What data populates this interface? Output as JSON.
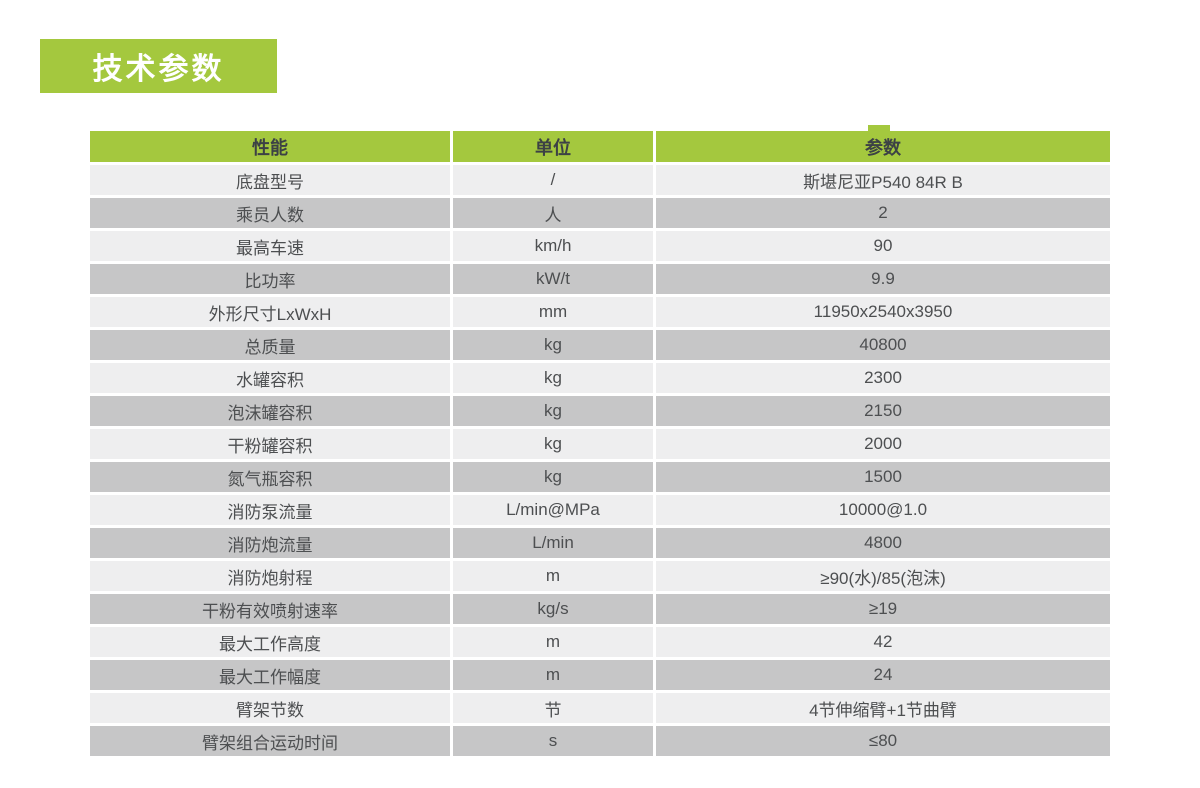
{
  "page": {
    "title": "技术参数",
    "colors": {
      "accent_green": "#a4c83e",
      "row_light": "#eeeeef",
      "row_dark": "#c6c6c7",
      "header_text": "#3c4145",
      "cell_text": "#4d4f51",
      "title_text": "#ffffff"
    }
  },
  "table": {
    "columns": [
      {
        "key": "name",
        "label": "性能"
      },
      {
        "key": "unit",
        "label": "单位"
      },
      {
        "key": "value",
        "label": "参数"
      }
    ],
    "rows": [
      {
        "name": "底盘型号",
        "unit": "/",
        "value": "斯堪尼亚P540 84R B"
      },
      {
        "name": "乘员人数",
        "unit": "人",
        "value": "2"
      },
      {
        "name": "最高车速",
        "unit": "km/h",
        "value": "90"
      },
      {
        "name": "比功率",
        "unit": "kW/t",
        "value": "9.9"
      },
      {
        "name": "外形尺寸LxWxH",
        "unit": "mm",
        "value": "11950x2540x3950"
      },
      {
        "name": "总质量",
        "unit": "kg",
        "value": "40800"
      },
      {
        "name": "水罐容积",
        "unit": "kg",
        "value": "2300"
      },
      {
        "name": "泡沫罐容积",
        "unit": "kg",
        "value": "2150"
      },
      {
        "name": "干粉罐容积",
        "unit": "kg",
        "value": "2000"
      },
      {
        "name": "氮气瓶容积",
        "unit": "kg",
        "value": "1500"
      },
      {
        "name": "消防泵流量",
        "unit": "L/min@MPa",
        "value": "10000@1.0"
      },
      {
        "name": "消防炮流量",
        "unit": "L/min",
        "value": "4800"
      },
      {
        "name": "消防炮射程",
        "unit": "m",
        "value": "≥90(水)/85(泡沫)"
      },
      {
        "name": "干粉有效喷射速率",
        "unit": "kg/s",
        "value": "≥19"
      },
      {
        "name": "最大工作高度",
        "unit": "m",
        "value": "42"
      },
      {
        "name": "最大工作幅度",
        "unit": "m",
        "value": "24"
      },
      {
        "name": "臂架节数",
        "unit": "节",
        "value": "4节伸缩臂+1节曲臂"
      },
      {
        "name": "臂架组合运动时间",
        "unit": "s",
        "value": "≤80"
      }
    ]
  }
}
